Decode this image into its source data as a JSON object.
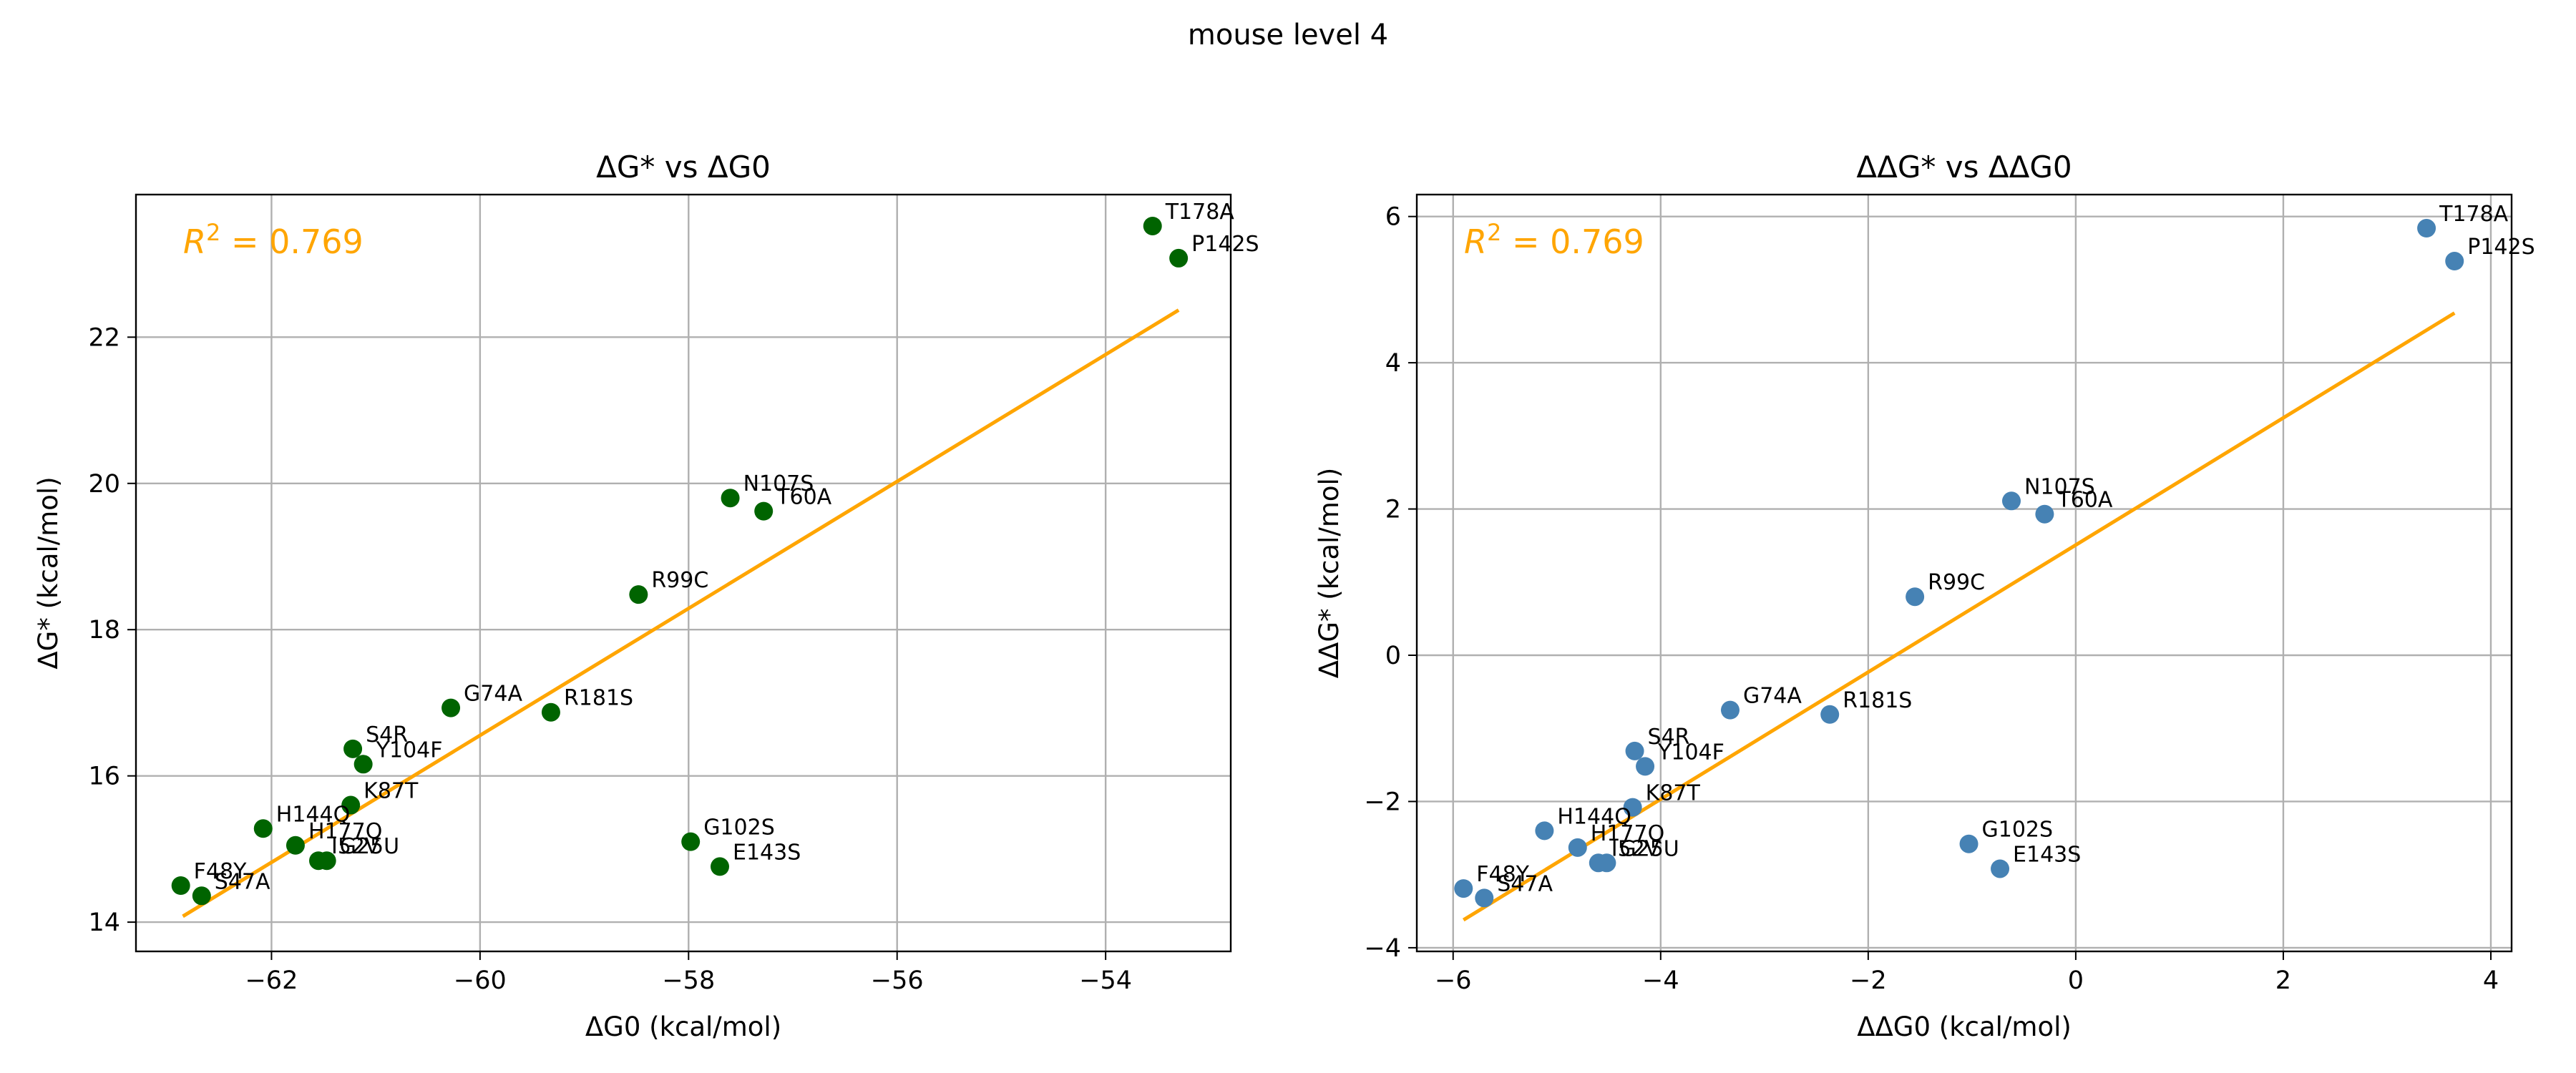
{
  "figure": {
    "title": "mouse level 4"
  },
  "chart_data": [
    {
      "type": "scatter",
      "title": "ΔG* vs ΔG0",
      "xlabel": "ΔG0 (kcal/mol)",
      "ylabel": "ΔG* (kcal/mol)",
      "xlim": [
        -63.3,
        -52.8
      ],
      "ylim": [
        13.6,
        23.95
      ],
      "xticks": [
        -62,
        -60,
        -58,
        -56,
        -54
      ],
      "yticks": [
        14,
        16,
        18,
        20,
        22
      ],
      "grid": true,
      "point_color": "#006400",
      "fit_color": "#FFA500",
      "annotation": {
        "prefix": "R",
        "sup": "2",
        "suffix": " = 0.769"
      },
      "fit_line": {
        "x": [
          -62.85,
          -53.3
        ],
        "y": [
          14.08,
          22.37
        ]
      },
      "points": [
        {
          "label": "T178A",
          "x": -53.55,
          "y": 23.52
        },
        {
          "label": "P142S",
          "x": -53.3,
          "y": 23.08
        },
        {
          "label": "N107S",
          "x": -57.6,
          "y": 19.8
        },
        {
          "label": "T60A",
          "x": -57.28,
          "y": 19.62
        },
        {
          "label": "R99C",
          "x": -58.48,
          "y": 18.48
        },
        {
          "label": "G74A",
          "x": -60.28,
          "y": 16.93
        },
        {
          "label": "R181S",
          "x": -59.32,
          "y": 16.87
        },
        {
          "label": "S4R",
          "x": -61.22,
          "y": 16.37
        },
        {
          "label": "Y104F",
          "x": -61.12,
          "y": 16.16
        },
        {
          "label": "K87T",
          "x": -61.24,
          "y": 15.6
        },
        {
          "label": "H144Q",
          "x": -62.08,
          "y": 15.28
        },
        {
          "label": "H177Q",
          "x": -61.77,
          "y": 15.05
        },
        {
          "label": "I52V",
          "x": -61.55,
          "y": 14.84
        },
        {
          "label": "G25U",
          "x": -61.47,
          "y": 14.84
        },
        {
          "label": "G102S",
          "x": -57.98,
          "y": 15.1
        },
        {
          "label": "E143S",
          "x": -57.7,
          "y": 14.76
        },
        {
          "label": "F48Y",
          "x": -62.87,
          "y": 14.5
        },
        {
          "label": "S47A",
          "x": -62.67,
          "y": 14.36
        }
      ]
    },
    {
      "type": "scatter",
      "title": "ΔΔG* vs ΔΔG0",
      "xlabel": "ΔΔG0 (kcal/mol)",
      "ylabel": "ΔΔG* (kcal/mol)",
      "xlim": [
        -6.35,
        4.2
      ],
      "ylim": [
        -4.05,
        6.3
      ],
      "xticks": [
        -6,
        -4,
        -2,
        0,
        2,
        4
      ],
      "yticks": [
        -4,
        -2,
        0,
        2,
        4,
        6
      ],
      "grid": true,
      "point_color": "#4682B4",
      "fit_color": "#FFA500",
      "annotation": {
        "prefix": "R",
        "sup": "2",
        "suffix": " = 0.769"
      },
      "fit_line": {
        "x": [
          -5.9,
          3.65
        ],
        "y": [
          -3.62,
          4.68
        ]
      },
      "points": [
        {
          "label": "T178A",
          "x": 3.38,
          "y": 5.84
        },
        {
          "label": "P142S",
          "x": 3.65,
          "y": 5.39
        },
        {
          "label": "N107S",
          "x": -0.62,
          "y": 2.11
        },
        {
          "label": "T60A",
          "x": -0.3,
          "y": 1.93
        },
        {
          "label": "R99C",
          "x": -1.55,
          "y": 0.8
        },
        {
          "label": "G74A",
          "x": -3.33,
          "y": -0.75
        },
        {
          "label": "R181S",
          "x": -2.37,
          "y": -0.81
        },
        {
          "label": "S4R",
          "x": -4.25,
          "y": -1.31
        },
        {
          "label": "Y104F",
          "x": -4.15,
          "y": -1.52
        },
        {
          "label": "K87T",
          "x": -4.27,
          "y": -2.08
        },
        {
          "label": "H144Q",
          "x": -5.12,
          "y": -2.4
        },
        {
          "label": "H177Q",
          "x": -4.8,
          "y": -2.63
        },
        {
          "label": "I52V",
          "x": -4.6,
          "y": -2.84
        },
        {
          "label": "G25U",
          "x": -4.52,
          "y": -2.84
        },
        {
          "label": "G102S",
          "x": -1.03,
          "y": -2.58
        },
        {
          "label": "E143S",
          "x": -0.73,
          "y": -2.92
        },
        {
          "label": "F48Y",
          "x": -5.9,
          "y": -3.19
        },
        {
          "label": "S47A",
          "x": -5.7,
          "y": -3.32
        }
      ]
    }
  ]
}
